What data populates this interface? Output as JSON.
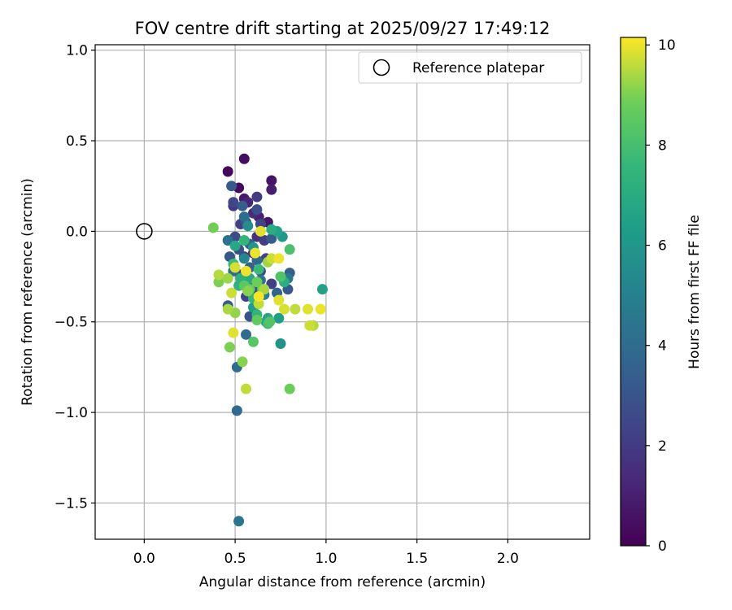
{
  "chart_data": {
    "type": "scatter",
    "title": "FOV centre drift starting at 2025/09/27 17:49:12",
    "xlabel": "Angular distance from reference (arcmin)",
    "ylabel": "Rotation from reference (arcmin)",
    "xlim": [
      -0.27,
      2.45
    ],
    "ylim": [
      -1.7,
      1.03
    ],
    "xticks": [
      0.0,
      0.5,
      1.0,
      1.5,
      2.0
    ],
    "xtick_labels": [
      "0.0",
      "0.5",
      "1.0",
      "1.5",
      "2.0"
    ],
    "yticks": [
      1.0,
      0.5,
      0.0,
      -0.5,
      -1.0,
      -1.5
    ],
    "ytick_labels": [
      "1.0",
      "0.5",
      "0.0",
      "−0.5",
      "−1.0",
      "−1.5"
    ],
    "grid": true,
    "legend": {
      "position": "top-right",
      "entries": [
        {
          "label": "Reference platepar",
          "marker": "open-circle"
        }
      ]
    },
    "reference_point": {
      "x": 0.0,
      "y": 0.0
    },
    "colorbar": {
      "label": "Hours from first FF file",
      "range": [
        0,
        10.15
      ],
      "ticks": [
        0,
        2,
        4,
        6,
        8,
        10
      ],
      "tick_labels": [
        "0",
        "2",
        "4",
        "6",
        "8",
        "10"
      ],
      "colormap": "viridis"
    },
    "points": [
      {
        "x": 0.46,
        "y": 0.33,
        "h": 0.2
      },
      {
        "x": 0.55,
        "y": 0.4,
        "h": 0.4
      },
      {
        "x": 0.7,
        "y": 0.28,
        "h": 0.6
      },
      {
        "x": 0.7,
        "y": 0.23,
        "h": 0.9
      },
      {
        "x": 0.52,
        "y": 0.24,
        "h": 0.3
      },
      {
        "x": 0.55,
        "y": 0.18,
        "h": 0.8
      },
      {
        "x": 0.63,
        "y": 0.08,
        "h": 1.0
      },
      {
        "x": 0.68,
        "y": 0.05,
        "h": 0.7
      },
      {
        "x": 0.57,
        "y": 0.16,
        "h": 1.2
      },
      {
        "x": 0.6,
        "y": 0.1,
        "h": 1.5
      },
      {
        "x": 0.62,
        "y": 0.19,
        "h": 2.0
      },
      {
        "x": 0.62,
        "y": 0.12,
        "h": 2.8
      },
      {
        "x": 0.48,
        "y": 0.25,
        "h": 3.2
      },
      {
        "x": 0.49,
        "y": 0.16,
        "h": 2.5
      },
      {
        "x": 0.49,
        "y": 0.14,
        "h": 1.8
      },
      {
        "x": 0.54,
        "y": 0.14,
        "h": 3.4
      },
      {
        "x": 0.53,
        "y": 0.04,
        "h": 2.2
      },
      {
        "x": 0.56,
        "y": 0.05,
        "h": 3.0
      },
      {
        "x": 0.64,
        "y": 0.04,
        "h": 2.4
      },
      {
        "x": 0.55,
        "y": 0.08,
        "h": 4.0
      },
      {
        "x": 0.5,
        "y": -0.03,
        "h": 2.6
      },
      {
        "x": 0.46,
        "y": -0.05,
        "h": 4.2
      },
      {
        "x": 0.58,
        "y": -0.07,
        "h": 3.6
      },
      {
        "x": 0.62,
        "y": -0.03,
        "h": 1.6
      },
      {
        "x": 0.66,
        "y": -0.05,
        "h": 2.1
      },
      {
        "x": 0.7,
        "y": -0.04,
        "h": 3.3
      },
      {
        "x": 0.52,
        "y": -0.1,
        "h": 2.9
      },
      {
        "x": 0.55,
        "y": -0.14,
        "h": 2.0
      },
      {
        "x": 0.6,
        "y": -0.12,
        "h": 1.4
      },
      {
        "x": 0.62,
        "y": -0.16,
        "h": 3.8
      },
      {
        "x": 0.67,
        "y": -0.15,
        "h": 2.3
      },
      {
        "x": 0.47,
        "y": -0.14,
        "h": 3.1
      },
      {
        "x": 0.49,
        "y": -0.22,
        "h": 4.1
      },
      {
        "x": 0.53,
        "y": -0.24,
        "h": 2.7
      },
      {
        "x": 0.58,
        "y": -0.2,
        "h": 3.5
      },
      {
        "x": 0.64,
        "y": -0.22,
        "h": 2.6
      },
      {
        "x": 0.58,
        "y": -0.28,
        "h": 3.9
      },
      {
        "x": 0.56,
        "y": -0.36,
        "h": 2.4
      },
      {
        "x": 0.61,
        "y": -0.33,
        "h": 3.0
      },
      {
        "x": 0.64,
        "y": -0.27,
        "h": 4.4
      },
      {
        "x": 0.73,
        "y": -0.34,
        "h": 3.7
      },
      {
        "x": 0.79,
        "y": -0.32,
        "h": 3.2
      },
      {
        "x": 0.8,
        "y": -0.23,
        "h": 3.4
      },
      {
        "x": 0.79,
        "y": -0.26,
        "h": 4.6
      },
      {
        "x": 0.7,
        "y": -0.29,
        "h": 2.2
      },
      {
        "x": 0.58,
        "y": -0.47,
        "h": 2.9
      },
      {
        "x": 0.56,
        "y": -0.57,
        "h": 4.0
      },
      {
        "x": 0.46,
        "y": -0.41,
        "h": 3.3
      },
      {
        "x": 0.51,
        "y": -0.75,
        "h": 4.0
      },
      {
        "x": 0.51,
        "y": -0.99,
        "h": 3.9
      },
      {
        "x": 0.52,
        "y": -1.6,
        "h": 4.5
      },
      {
        "x": 0.66,
        "y": -0.35,
        "h": 5.0
      },
      {
        "x": 0.67,
        "y": -0.5,
        "h": 6.2
      },
      {
        "x": 0.75,
        "y": -0.62,
        "h": 5.8
      },
      {
        "x": 0.74,
        "y": -0.48,
        "h": 6.4
      },
      {
        "x": 0.55,
        "y": -0.15,
        "h": 5.3
      },
      {
        "x": 0.6,
        "y": -0.09,
        "h": 6.0
      },
      {
        "x": 0.57,
        "y": 0.03,
        "h": 5.6
      },
      {
        "x": 0.73,
        "y": 0.0,
        "h": 6.6
      },
      {
        "x": 0.76,
        "y": -0.03,
        "h": 6.1
      },
      {
        "x": 0.7,
        "y": 0.01,
        "h": 7.0
      },
      {
        "x": 0.5,
        "y": -0.08,
        "h": 6.8
      },
      {
        "x": 0.53,
        "y": -0.26,
        "h": 7.2
      },
      {
        "x": 0.58,
        "y": -0.26,
        "h": 6.9
      },
      {
        "x": 0.98,
        "y": -0.32,
        "h": 6.5
      },
      {
        "x": 0.77,
        "y": -0.28,
        "h": 7.1
      },
      {
        "x": 0.6,
        "y": -0.42,
        "h": 6.3
      },
      {
        "x": 0.62,
        "y": -0.46,
        "h": 7.4
      },
      {
        "x": 0.68,
        "y": -0.48,
        "h": 6.7
      },
      {
        "x": 0.55,
        "y": -0.05,
        "h": 7.5
      },
      {
        "x": 0.6,
        "y": -0.37,
        "h": 7.6
      },
      {
        "x": 0.49,
        "y": -0.18,
        "h": 7.8
      },
      {
        "x": 0.52,
        "y": -0.3,
        "h": 7.3
      },
      {
        "x": 0.63,
        "y": -0.21,
        "h": 7.7
      },
      {
        "x": 0.68,
        "y": -0.51,
        "h": 7.9
      },
      {
        "x": 0.75,
        "y": -0.25,
        "h": 8.2
      },
      {
        "x": 0.8,
        "y": -0.1,
        "h": 8.1
      },
      {
        "x": 0.6,
        "y": -0.61,
        "h": 8.4
      },
      {
        "x": 0.62,
        "y": -0.49,
        "h": 8.6
      },
      {
        "x": 0.69,
        "y": -0.5,
        "h": 8.3
      },
      {
        "x": 0.8,
        "y": -0.87,
        "h": 8.8
      },
      {
        "x": 0.65,
        "y": -0.32,
        "h": 8.9
      },
      {
        "x": 0.55,
        "y": -0.3,
        "h": 8.5
      },
      {
        "x": 0.58,
        "y": -0.32,
        "h": 8.7
      },
      {
        "x": 0.38,
        "y": 0.02,
        "h": 8.9
      },
      {
        "x": 0.47,
        "y": -0.64,
        "h": 9.0
      },
      {
        "x": 0.54,
        "y": -0.72,
        "h": 9.1
      },
      {
        "x": 0.56,
        "y": -0.87,
        "h": 9.6
      },
      {
        "x": 0.5,
        "y": -0.45,
        "h": 9.2
      },
      {
        "x": 0.46,
        "y": -0.43,
        "h": 9.4
      },
      {
        "x": 0.46,
        "y": -0.26,
        "h": 9.3
      },
      {
        "x": 0.41,
        "y": -0.24,
        "h": 9.5
      },
      {
        "x": 0.41,
        "y": -0.28,
        "h": 9.0
      },
      {
        "x": 0.48,
        "y": -0.34,
        "h": 9.7
      },
      {
        "x": 0.49,
        "y": -0.56,
        "h": 9.9
      },
      {
        "x": 0.5,
        "y": -0.2,
        "h": 9.8
      },
      {
        "x": 0.56,
        "y": -0.22,
        "h": 10.0
      },
      {
        "x": 0.61,
        "y": -0.12,
        "h": 10.0
      },
      {
        "x": 0.64,
        "y": 0.0,
        "h": 9.9
      },
      {
        "x": 0.63,
        "y": -0.36,
        "h": 10.1
      },
      {
        "x": 0.63,
        "y": -0.4,
        "h": 9.6
      },
      {
        "x": 0.66,
        "y": -0.32,
        "h": 9.4
      },
      {
        "x": 0.7,
        "y": -0.15,
        "h": 9.7
      },
      {
        "x": 0.74,
        "y": -0.15,
        "h": 10.0
      },
      {
        "x": 0.74,
        "y": -0.38,
        "h": 9.9
      },
      {
        "x": 0.77,
        "y": -0.43,
        "h": 9.8
      },
      {
        "x": 0.83,
        "y": -0.43,
        "h": 9.6
      },
      {
        "x": 0.9,
        "y": -0.43,
        "h": 9.9
      },
      {
        "x": 0.91,
        "y": -0.52,
        "h": 9.7
      },
      {
        "x": 0.93,
        "y": -0.52,
        "h": 9.5
      },
      {
        "x": 0.97,
        "y": -0.43,
        "h": 10.0
      },
      {
        "x": 0.68,
        "y": -0.17,
        "h": 9.3
      },
      {
        "x": 0.57,
        "y": -0.33,
        "h": 9.1
      },
      {
        "x": 0.62,
        "y": -0.28,
        "h": 8.8
      }
    ]
  }
}
